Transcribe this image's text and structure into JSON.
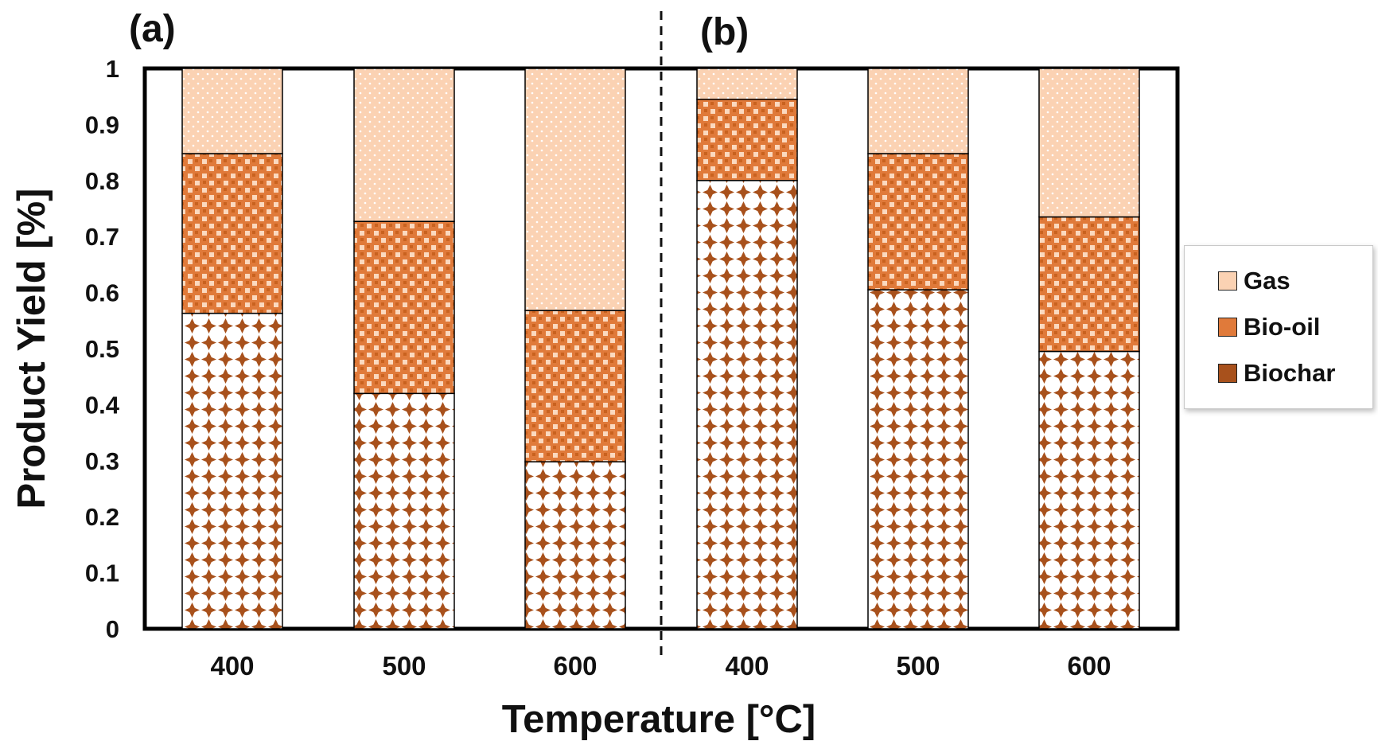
{
  "chart_data": {
    "type": "bar",
    "stacked": true,
    "title": "",
    "xlabel": "Temperature [°C]",
    "ylabel": "Product Yield [%]",
    "ylim": [
      0,
      1
    ],
    "yticks": [
      "0",
      "0.1",
      "0.2",
      "0.3",
      "0.4",
      "0.5",
      "0.6",
      "0.7",
      "0.8",
      "0.9",
      "1"
    ],
    "panels": [
      {
        "label": "(a)",
        "categories": [
          "400",
          "500",
          "600"
        ]
      },
      {
        "label": "(b)",
        "categories": [
          "400",
          "500",
          "600"
        ]
      }
    ],
    "categories": [
      "400",
      "500",
      "600",
      "400",
      "500",
      "600"
    ],
    "series": [
      {
        "name": "Biochar",
        "color": "#a8511c",
        "values": [
          0.563,
          0.42,
          0.298,
          0.8,
          0.605,
          0.495
        ]
      },
      {
        "name": "Bio-oil",
        "color": "#e07a3a",
        "values": [
          0.285,
          0.307,
          0.27,
          0.145,
          0.243,
          0.24
        ]
      },
      {
        "name": "Gas",
        "color": "#fbd2b3",
        "values": [
          0.152,
          0.273,
          0.432,
          0.055,
          0.152,
          0.265
        ]
      }
    ],
    "legend": {
      "position": "right",
      "entries": [
        "Gas",
        "Bio-oil",
        "Biochar"
      ]
    }
  }
}
